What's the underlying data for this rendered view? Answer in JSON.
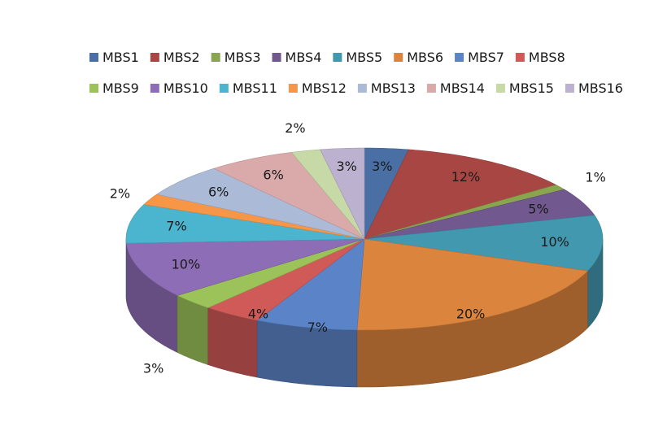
{
  "chart_data": {
    "type": "pie",
    "style": "3d",
    "legend_position": "top",
    "title": "",
    "slices": [
      {
        "name": "MBS1",
        "label": "3%",
        "value": 3,
        "color": "#4a6fa5"
      },
      {
        "name": "MBS2",
        "label": "12%",
        "value": 12,
        "color": "#a84643"
      },
      {
        "name": "MBS3",
        "label": "1%",
        "value": 1,
        "color": "#89a54e"
      },
      {
        "name": "MBS4",
        "label": "5%",
        "value": 5,
        "color": "#71588f"
      },
      {
        "name": "MBS5",
        "label": "10%",
        "value": 10,
        "color": "#4198af"
      },
      {
        "name": "MBS6",
        "label": "20%",
        "value": 20,
        "color": "#db843d"
      },
      {
        "name": "MBS7",
        "label": "7%",
        "value": 7,
        "color": "#5b84c8"
      },
      {
        "name": "MBS8",
        "label": "4%",
        "value": 4,
        "color": "#d05a57"
      },
      {
        "name": "MBS9",
        "label": "3%",
        "value": 3,
        "color": "#9cc35a"
      },
      {
        "name": "MBS10",
        "label": "10%",
        "value": 10,
        "color": "#8d6db5"
      },
      {
        "name": "MBS11",
        "label": "7%",
        "value": 7,
        "color": "#4bb4cf"
      },
      {
        "name": "MBS12",
        "label": "2%",
        "value": 2,
        "color": "#f79646"
      },
      {
        "name": "MBS13",
        "label": "6%",
        "value": 6,
        "color": "#aabad7"
      },
      {
        "name": "MBS14",
        "label": "6%",
        "value": 6,
        "color": "#d9aaa9"
      },
      {
        "name": "MBS15",
        "label": "2%",
        "value": 2,
        "color": "#c6d9a6"
      },
      {
        "name": "MBS16",
        "label": "3%",
        "value": 3,
        "color": "#bcb1cf"
      }
    ]
  }
}
